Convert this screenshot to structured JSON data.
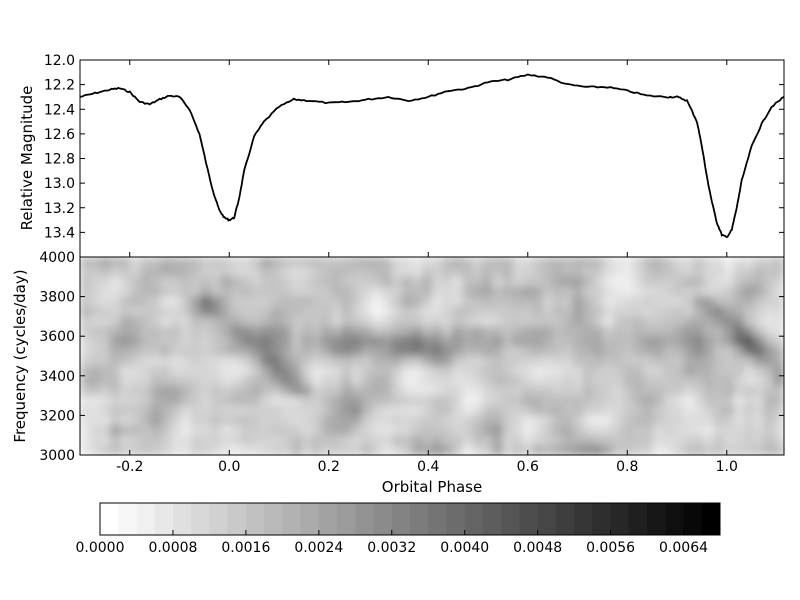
{
  "chart_data": [
    {
      "type": "line",
      "ylabel": "Relative Magnitude",
      "ylim": [
        13.6,
        12.0
      ],
      "y_inverted": true,
      "xlim": [
        -0.3,
        1.115
      ],
      "yticks": [
        "12.0",
        "12.2",
        "12.4",
        "12.6",
        "12.8",
        "13.0",
        "13.2",
        "13.4"
      ],
      "series": [
        {
          "x": [
            -0.3,
            -0.27,
            -0.24,
            -0.22,
            -0.2,
            -0.18,
            -0.16,
            -0.14,
            -0.12,
            -0.1,
            -0.08,
            -0.06,
            -0.04,
            -0.03,
            -0.02,
            -0.01,
            0.0,
            0.01,
            0.02,
            0.03,
            0.05,
            0.07,
            0.1,
            0.13,
            0.16,
            0.2,
            0.24,
            0.28,
            0.32,
            0.36,
            0.4,
            0.44,
            0.48,
            0.52,
            0.56,
            0.6,
            0.64,
            0.68,
            0.72,
            0.76,
            0.8,
            0.84,
            0.88,
            0.9,
            0.92,
            0.94,
            0.95,
            0.96,
            0.97,
            0.98,
            0.99,
            1.0,
            1.01,
            1.02,
            1.03,
            1.05,
            1.07,
            1.09,
            1.115
          ],
          "y": [
            12.3,
            12.27,
            12.24,
            12.23,
            12.26,
            12.34,
            12.36,
            12.32,
            12.29,
            12.3,
            12.4,
            12.6,
            12.95,
            13.1,
            13.22,
            13.28,
            13.3,
            13.28,
            13.12,
            12.9,
            12.62,
            12.5,
            12.38,
            12.32,
            12.33,
            12.35,
            12.34,
            12.32,
            12.3,
            12.33,
            12.3,
            12.25,
            12.23,
            12.18,
            12.16,
            12.12,
            12.14,
            12.2,
            12.22,
            12.22,
            12.25,
            12.29,
            12.3,
            12.3,
            12.33,
            12.5,
            12.7,
            12.95,
            13.15,
            13.32,
            13.42,
            13.44,
            13.38,
            13.2,
            12.98,
            12.7,
            12.52,
            12.38,
            12.3
          ]
        }
      ]
    },
    {
      "type": "heatmap",
      "xlabel": "Orbital Phase",
      "ylabel": "Frequency (cycles/day)",
      "xlim": [
        -0.3,
        1.115
      ],
      "ylim": [
        3000,
        4000
      ],
      "xticks": [
        "-0.2",
        "0.0",
        "0.2",
        "0.4",
        "0.6",
        "0.8",
        "1.0"
      ],
      "yticks": [
        "3000",
        "3200",
        "3400",
        "3600",
        "3800",
        "4000"
      ],
      "colormap": "gray_r",
      "colorbar": {
        "range": [
          0.0,
          0.0068
        ],
        "ticks": [
          "0.0000",
          "0.0008",
          "0.0016",
          "0.0024",
          "0.0032",
          "0.0040",
          "0.0048",
          "0.0056",
          "0.0064"
        ]
      }
    }
  ]
}
